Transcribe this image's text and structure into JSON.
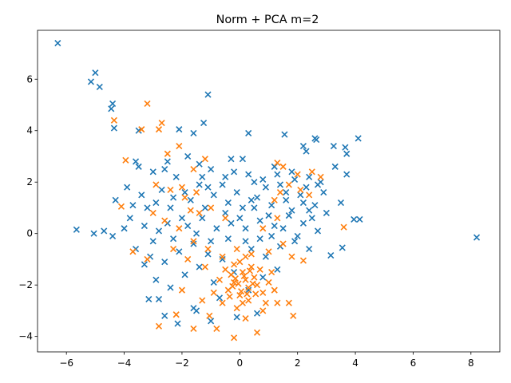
{
  "chart_data": {
    "type": "scatter",
    "title": "Norm + PCA  m=2",
    "xlabel": "",
    "ylabel": "",
    "xlim": [
      -7.0,
      9.0
    ],
    "ylim": [
      -4.6,
      7.9
    ],
    "xticks": [
      -6,
      -4,
      -2,
      0,
      2,
      4,
      6,
      8
    ],
    "yticks": [
      -4,
      -2,
      0,
      2,
      4,
      6
    ],
    "xtick_labels": [
      "−6",
      "−4",
      "−2",
      "0",
      "2",
      "4",
      "6",
      "8"
    ],
    "ytick_labels": [
      "−4",
      "−2",
      "0",
      "2",
      "4",
      "6"
    ],
    "grid": false,
    "legend": "none",
    "marker": "x",
    "series": [
      {
        "color": "#1f77b4",
        "points": [
          [
            -6.3,
            7.4
          ],
          [
            -5.0,
            6.25
          ],
          [
            -5.15,
            5.9
          ],
          [
            -4.85,
            5.7
          ],
          [
            -1.1,
            5.4
          ],
          [
            -4.4,
            5.05
          ],
          [
            -4.45,
            4.85
          ],
          [
            -4.35,
            4.1
          ],
          [
            -3.5,
            4.0
          ],
          [
            -1.25,
            4.3
          ],
          [
            -2.1,
            4.05
          ],
          [
            -1.6,
            3.9
          ],
          [
            0.3,
            3.9
          ],
          [
            1.55,
            3.85
          ],
          [
            2.6,
            3.7
          ],
          [
            2.65,
            3.65
          ],
          [
            2.2,
            3.4
          ],
          [
            2.3,
            3.2
          ],
          [
            3.25,
            3.4
          ],
          [
            3.65,
            3.35
          ],
          [
            3.7,
            3.1
          ],
          [
            4.1,
            3.7
          ],
          [
            -0.3,
            2.9
          ],
          [
            0.1,
            2.9
          ],
          [
            3.3,
            2.6
          ],
          [
            3.7,
            2.3
          ],
          [
            -5.65,
            0.15
          ],
          [
            -5.05,
            0.0
          ],
          [
            -4.7,
            0.1
          ],
          [
            -4.4,
            -0.1
          ],
          [
            3.95,
            0.55
          ],
          [
            4.15,
            0.55
          ],
          [
            3.5,
            1.2
          ],
          [
            3.55,
            -0.55
          ],
          [
            3.15,
            -0.85
          ],
          [
            8.2,
            -0.15
          ],
          [
            -3.15,
            -2.55
          ],
          [
            -2.8,
            -2.55
          ],
          [
            -2.6,
            -3.2
          ],
          [
            -2.15,
            -3.5
          ],
          [
            -1.5,
            -3.0
          ],
          [
            -1.6,
            -2.9
          ],
          [
            -1.0,
            -3.4
          ],
          [
            -0.1,
            -3.25
          ],
          [
            0.6,
            -3.1
          ],
          [
            -3.6,
            2.8
          ],
          [
            -3.5,
            2.6
          ],
          [
            -3.0,
            2.4
          ],
          [
            -2.5,
            2.8
          ],
          [
            -1.8,
            3.0
          ],
          [
            -1.4,
            2.7
          ],
          [
            -1.0,
            2.5
          ],
          [
            -0.5,
            2.2
          ],
          [
            0.5,
            2.0
          ],
          [
            1.2,
            2.6
          ],
          [
            1.8,
            2.4
          ],
          [
            2.4,
            2.2
          ],
          [
            2.8,
            2.0
          ],
          [
            -3.9,
            1.8
          ],
          [
            -3.4,
            1.5
          ],
          [
            -2.9,
            1.2
          ],
          [
            -2.4,
            1.0
          ],
          [
            -1.9,
            1.6
          ],
          [
            -1.4,
            1.9
          ],
          [
            -0.9,
            1.5
          ],
          [
            -0.4,
            1.2
          ],
          [
            0.1,
            1.0
          ],
          [
            0.6,
            1.4
          ],
          [
            1.1,
            1.1
          ],
          [
            1.6,
            1.3
          ],
          [
            2.1,
            1.5
          ],
          [
            2.6,
            1.1
          ],
          [
            3.0,
            0.8
          ],
          [
            -4.3,
            1.3
          ],
          [
            -3.8,
            0.6
          ],
          [
            -3.3,
            0.3
          ],
          [
            -2.8,
            0.1
          ],
          [
            -2.3,
            -0.2
          ],
          [
            -1.8,
            0.3
          ],
          [
            -1.3,
            0.6
          ],
          [
            -0.8,
            0.2
          ],
          [
            -0.3,
            0.4
          ],
          [
            0.2,
            0.2
          ],
          [
            0.7,
            0.5
          ],
          [
            1.2,
            0.3
          ],
          [
            1.7,
            0.7
          ],
          [
            2.2,
            0.4
          ],
          [
            2.7,
            0.1
          ],
          [
            -3.6,
            -0.6
          ],
          [
            -3.1,
            -0.9
          ],
          [
            -2.6,
            -1.1
          ],
          [
            -2.1,
            -0.7
          ],
          [
            -1.6,
            -0.4
          ],
          [
            -1.1,
            -0.8
          ],
          [
            -0.6,
            -1.0
          ],
          [
            0.4,
            -0.6
          ],
          [
            0.9,
            -0.9
          ],
          [
            1.4,
            -0.5
          ],
          [
            1.9,
            -0.3
          ],
          [
            2.4,
            -0.6
          ],
          [
            -2.9,
            -1.8
          ],
          [
            -2.4,
            -2.1
          ],
          [
            -1.9,
            -1.6
          ],
          [
            -1.4,
            -1.3
          ],
          [
            -0.9,
            -1.9
          ],
          [
            -0.2,
            -1.5
          ],
          [
            0.3,
            -2.2
          ],
          [
            0.8,
            -1.7
          ],
          [
            1.3,
            -1.4
          ],
          [
            -0.7,
            -2.5
          ],
          [
            -3.2,
            1.0
          ],
          [
            -2.7,
            1.7
          ],
          [
            -2.2,
            2.2
          ],
          [
            -1.7,
            1.3
          ],
          [
            -1.2,
            1.0
          ],
          [
            0.9,
            1.8
          ],
          [
            1.4,
            1.9
          ],
          [
            1.9,
            2.1
          ],
          [
            2.3,
            1.8
          ],
          [
            2.9,
            1.6
          ],
          [
            -2.0,
            0.6
          ],
          [
            -1.5,
            0.0
          ],
          [
            -1.0,
            -0.3
          ],
          [
            -0.5,
            0.8
          ],
          [
            0.0,
            0.6
          ],
          [
            0.5,
            1.0
          ],
          [
            1.0,
            0.7
          ],
          [
            1.5,
            0.2
          ],
          [
            2.0,
            -0.1
          ],
          [
            2.5,
            0.6
          ],
          [
            -3.0,
            -0.3
          ],
          [
            -2.5,
            0.4
          ],
          [
            -4.0,
            0.2
          ],
          [
            -3.7,
            1.1
          ],
          [
            -3.3,
            -1.2
          ],
          [
            -0.1,
            1.6
          ],
          [
            0.4,
            1.3
          ],
          [
            0.2,
            -0.3
          ],
          [
            -0.4,
            -0.2
          ],
          [
            0.7,
            -0.2
          ],
          [
            1.1,
            -0.1
          ],
          [
            -1.1,
            1.8
          ],
          [
            -1.3,
            2.2
          ],
          [
            -2.6,
            2.5
          ],
          [
            -2.3,
            1.4
          ],
          [
            1.6,
            1.6
          ],
          [
            1.8,
            0.9
          ],
          [
            2.2,
            1.2
          ],
          [
            2.4,
            0.9
          ],
          [
            2.7,
            1.9
          ],
          [
            -0.6,
            1.9
          ],
          [
            -0.2,
            2.4
          ],
          [
            0.3,
            2.3
          ],
          [
            0.8,
            2.1
          ],
          [
            1.3,
            2.3
          ]
        ]
      },
      {
        "color": "#ff7f0e",
        "points": [
          [
            -3.2,
            5.05
          ],
          [
            -4.35,
            4.4
          ],
          [
            -3.4,
            4.05
          ],
          [
            -2.7,
            4.3
          ],
          [
            -2.8,
            4.05
          ],
          [
            -2.1,
            3.4
          ],
          [
            -2.5,
            3.1
          ],
          [
            -1.2,
            2.9
          ],
          [
            -3.95,
            2.85
          ],
          [
            -1.6,
            2.5
          ],
          [
            1.3,
            2.75
          ],
          [
            1.5,
            2.6
          ],
          [
            2.0,
            2.3
          ],
          [
            2.5,
            2.4
          ],
          [
            2.8,
            2.2
          ],
          [
            -4.1,
            1.05
          ],
          [
            -3.7,
            -0.7
          ],
          [
            3.6,
            0.25
          ],
          [
            -3.2,
            -1.0
          ],
          [
            2.2,
            -1.05
          ],
          [
            -2.8,
            -3.6
          ],
          [
            -2.2,
            -3.15
          ],
          [
            -1.6,
            -3.7
          ],
          [
            -1.05,
            -3.2
          ],
          [
            -0.8,
            -3.7
          ],
          [
            -0.2,
            -4.05
          ],
          [
            0.2,
            -3.3
          ],
          [
            0.8,
            -3.0
          ],
          [
            1.3,
            -2.7
          ],
          [
            1.7,
            -2.7
          ],
          [
            1.85,
            -3.2
          ],
          [
            0.6,
            -3.85
          ],
          [
            -2.0,
            -2.2
          ],
          [
            -1.3,
            -2.6
          ],
          [
            -0.9,
            -2.3
          ],
          [
            -2.9,
            1.9
          ],
          [
            -2.4,
            1.7
          ],
          [
            -1.9,
            1.4
          ],
          [
            -1.4,
            0.8
          ],
          [
            -2.6,
            0.5
          ],
          [
            -2.1,
            0.2
          ],
          [
            -1.6,
            -0.3
          ],
          [
            -1.1,
            -0.6
          ],
          [
            -0.6,
            -0.9
          ],
          [
            -3.0,
            0.8
          ],
          [
            -2.3,
            -0.6
          ],
          [
            -1.8,
            -1.0
          ],
          [
            -1.2,
            -1.3
          ],
          [
            0.1,
            -1.5
          ],
          [
            0.2,
            -1.8
          ],
          [
            0.3,
            -2.1
          ],
          [
            0.0,
            -2.4
          ],
          [
            -0.2,
            -1.9
          ],
          [
            -0.3,
            -1.6
          ],
          [
            0.4,
            -1.3
          ],
          [
            0.5,
            -1.7
          ],
          [
            0.6,
            -2.0
          ],
          [
            0.1,
            -2.7
          ],
          [
            -0.1,
            -2.9
          ],
          [
            0.3,
            -2.6
          ],
          [
            -0.4,
            -2.2
          ],
          [
            -0.5,
            -1.4
          ],
          [
            0.7,
            -1.4
          ],
          [
            0.8,
            -2.3
          ],
          [
            1.0,
            -1.9
          ],
          [
            1.1,
            -1.5
          ],
          [
            1.2,
            -2.2
          ],
          [
            0.9,
            -2.7
          ],
          [
            -0.6,
            -2.7
          ],
          [
            -0.7,
            -1.8
          ],
          [
            0.0,
            -1.1
          ],
          [
            0.2,
            -0.9
          ],
          [
            -0.2,
            -1.2
          ],
          [
            0.4,
            -0.8
          ],
          [
            -0.1,
            -0.6
          ],
          [
            0.15,
            -1.65
          ],
          [
            -0.05,
            -1.95
          ],
          [
            0.35,
            -1.45
          ],
          [
            0.05,
            -2.25
          ],
          [
            -0.25,
            -2.05
          ],
          [
            0.25,
            -2.35
          ],
          [
            0.45,
            -1.95
          ],
          [
            -0.15,
            -1.75
          ],
          [
            0.55,
            -2.35
          ],
          [
            -0.35,
            -2.45
          ],
          [
            1.4,
            1.6
          ],
          [
            1.7,
            1.9
          ],
          [
            2.1,
            1.7
          ],
          [
            2.4,
            1.5
          ],
          [
            1.2,
            1.3
          ],
          [
            -1.0,
            1.0
          ],
          [
            -0.5,
            0.6
          ],
          [
            -1.7,
            0.9
          ],
          [
            -2.0,
            1.8
          ],
          [
            -1.5,
            1.6
          ],
          [
            1.5,
            -0.4
          ],
          [
            1.0,
            -0.7
          ],
          [
            1.8,
            -0.9
          ],
          [
            0.8,
            0.2
          ],
          [
            1.3,
            0.6
          ]
        ]
      }
    ]
  }
}
